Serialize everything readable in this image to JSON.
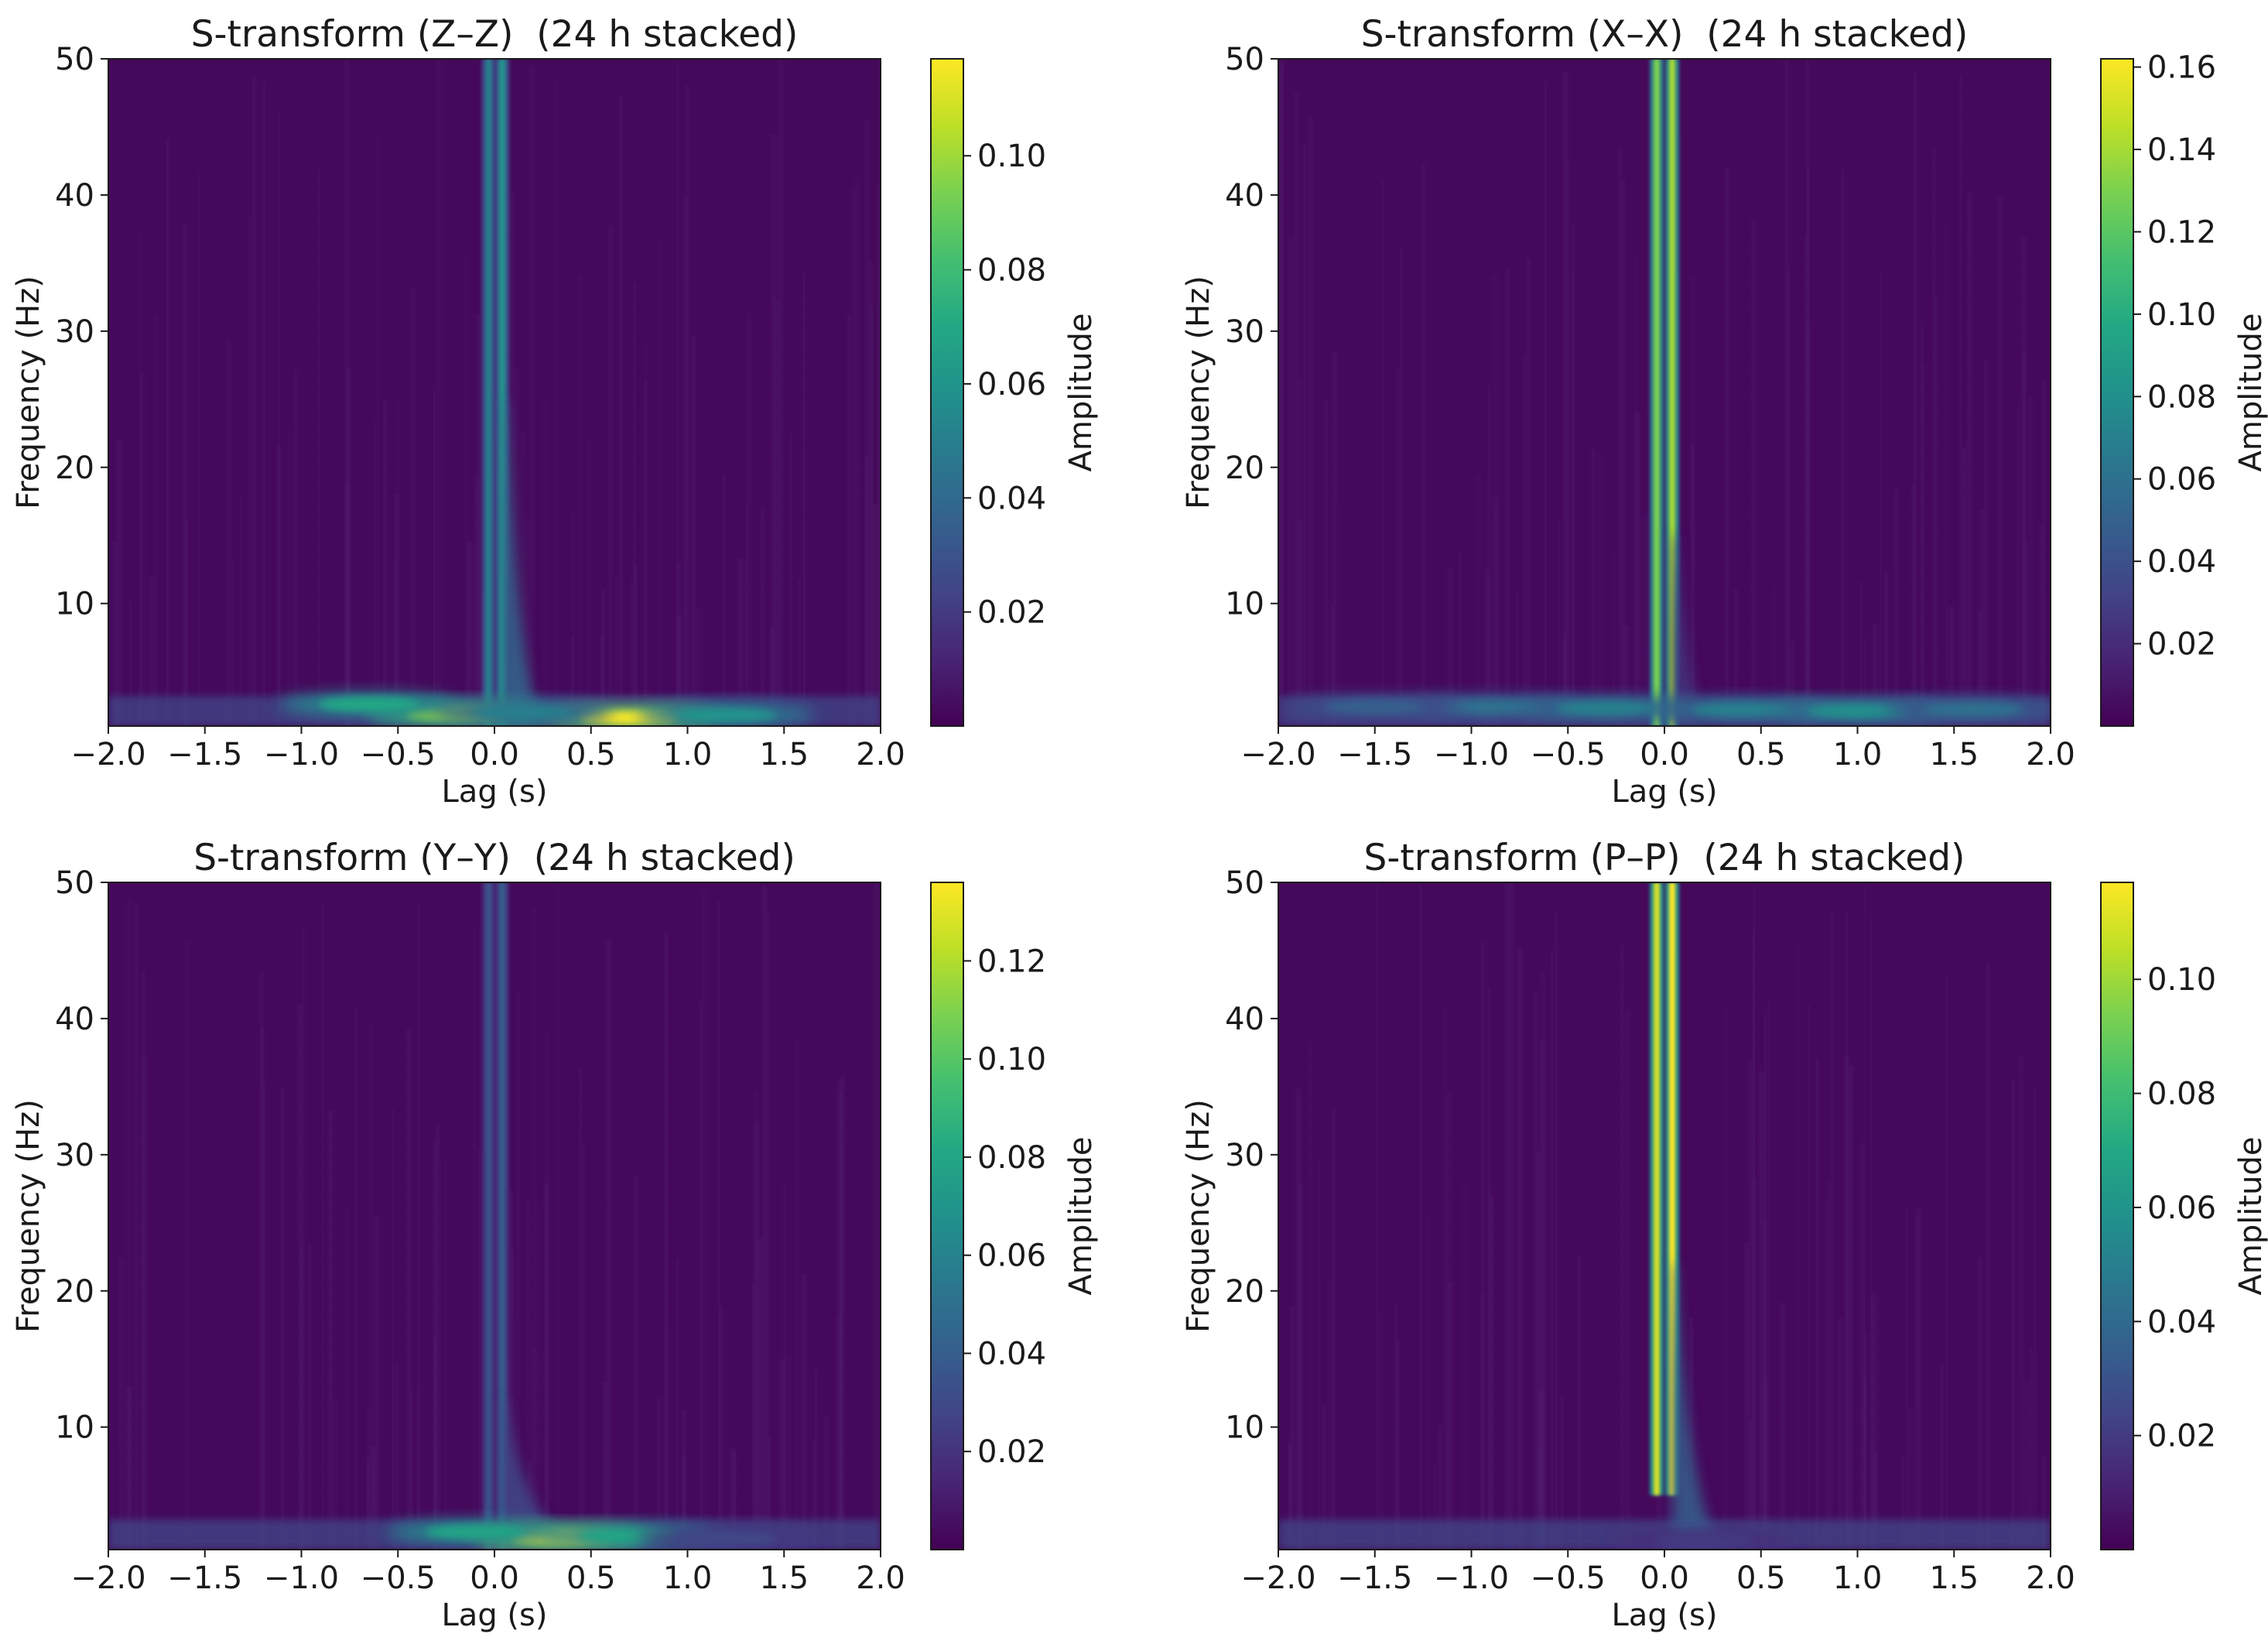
{
  "chart_data": [
    {
      "type": "heatmap",
      "title": "S-transform (Z–Z)  (24 h stacked)",
      "xlabel": "Lag (s)",
      "ylabel": "Frequency (Hz)",
      "xlim": [
        -2.0,
        2.0
      ],
      "ylim": [
        1,
        50
      ],
      "xticks": [
        -2.0,
        -1.5,
        -1.0,
        -0.5,
        0.0,
        0.5,
        1.0,
        1.5,
        2.0
      ],
      "xtick_labels": [
        "−2.0",
        "−1.5",
        "−1.0",
        "−0.5",
        "0.0",
        "0.5",
        "1.0",
        "1.5",
        "2.0"
      ],
      "yticks": [
        10,
        20,
        30,
        40,
        50
      ],
      "ytick_labels": [
        "10",
        "20",
        "30",
        "40",
        "50"
      ],
      "colorbar": {
        "label": "Amplitude",
        "colormap": "viridis",
        "range": [
          0.0,
          0.117
        ],
        "ticks": [
          0.02,
          0.04,
          0.06,
          0.08,
          0.1
        ],
        "tick_labels": [
          "0.02",
          "0.04",
          "0.06",
          "0.08",
          "0.10"
        ]
      },
      "features": [
        {
          "kind": "vertical-line",
          "lag": -0.03,
          "amplitude": 0.05,
          "fmin": 1,
          "fmax": 50
        },
        {
          "kind": "vertical-line",
          "lag": 0.04,
          "amplitude": 0.06,
          "fmin": 1,
          "fmax": 50
        },
        {
          "kind": "tail",
          "lag_from": 0.04,
          "lag_to": 0.25,
          "amplitude": 0.04,
          "fmin": 1,
          "fmax": 25
        },
        {
          "kind": "blob",
          "lag": -0.2,
          "freq": 1.9,
          "amplitude": 0.1
        },
        {
          "kind": "blob",
          "lag": -0.65,
          "freq": 2.6,
          "amplitude": 0.07
        },
        {
          "kind": "blob",
          "lag": 0.7,
          "freq": 1.6,
          "amplitude": 0.117
        },
        {
          "kind": "blob",
          "lag": 1.2,
          "freq": 1.8,
          "amplitude": 0.06
        },
        {
          "kind": "blob",
          "lag": 0.15,
          "freq": 2.0,
          "amplitude": 0.05
        }
      ]
    },
    {
      "type": "heatmap",
      "title": "S-transform (X–X)  (24 h stacked)",
      "xlabel": "Lag (s)",
      "ylabel": "Frequency (Hz)",
      "xlim": [
        -2.0,
        2.0
      ],
      "ylim": [
        1,
        50
      ],
      "xticks": [
        -2.0,
        -1.5,
        -1.0,
        -0.5,
        0.0,
        0.5,
        1.0,
        1.5,
        2.0
      ],
      "xtick_labels": [
        "−2.0",
        "−1.5",
        "−1.0",
        "−0.5",
        "0.0",
        "0.5",
        "1.0",
        "1.5",
        "2.0"
      ],
      "yticks": [
        10,
        20,
        30,
        40,
        50
      ],
      "ytick_labels": [
        "10",
        "20",
        "30",
        "40",
        "50"
      ],
      "colorbar": {
        "label": "Amplitude",
        "colormap": "viridis",
        "range": [
          0.0,
          0.162
        ],
        "ticks": [
          0.02,
          0.04,
          0.06,
          0.08,
          0.1,
          0.12,
          0.14,
          0.16
        ],
        "tick_labels": [
          "0.02",
          "0.04",
          "0.06",
          "0.08",
          "0.10",
          "0.12",
          "0.14",
          "0.16"
        ]
      },
      "features": [
        {
          "kind": "vertical-line",
          "lag": -0.04,
          "amplitude": 0.13,
          "fmin": 1,
          "fmax": 50
        },
        {
          "kind": "vertical-line",
          "lag": 0.04,
          "amplitude": 0.14,
          "fmin": 1,
          "fmax": 50
        },
        {
          "kind": "tail",
          "lag_from": 0.04,
          "lag_to": 0.2,
          "amplitude": 0.025,
          "fmin": 1,
          "fmax": 15
        },
        {
          "kind": "blob",
          "lag": -0.9,
          "freq": 2.4,
          "amplitude": 0.06
        },
        {
          "kind": "blob",
          "lag": -0.3,
          "freq": 2.3,
          "amplitude": 0.07
        },
        {
          "kind": "blob",
          "lag": 0.4,
          "freq": 2.2,
          "amplitude": 0.07
        },
        {
          "kind": "blob",
          "lag": 1.0,
          "freq": 2.1,
          "amplitude": 0.08
        },
        {
          "kind": "blob",
          "lag": 1.6,
          "freq": 2.2,
          "amplitude": 0.06
        },
        {
          "kind": "blob",
          "lag": -1.5,
          "freq": 2.4,
          "amplitude": 0.05
        }
      ]
    },
    {
      "type": "heatmap",
      "title": "S-transform (Y–Y)  (24 h stacked)",
      "xlabel": "Lag (s)",
      "ylabel": "Frequency (Hz)",
      "xlim": [
        -2.0,
        2.0
      ],
      "ylim": [
        1,
        50
      ],
      "xticks": [
        -2.0,
        -1.5,
        -1.0,
        -0.5,
        0.0,
        0.5,
        1.0,
        1.5,
        2.0
      ],
      "xtick_labels": [
        "−2.0",
        "−1.5",
        "−1.0",
        "−0.5",
        "0.0",
        "0.5",
        "1.0",
        "1.5",
        "2.0"
      ],
      "yticks": [
        10,
        20,
        30,
        40,
        50
      ],
      "ytick_labels": [
        "10",
        "20",
        "30",
        "40",
        "50"
      ],
      "colorbar": {
        "label": "Amplitude",
        "colormap": "viridis",
        "range": [
          0.0,
          0.136
        ],
        "ticks": [
          0.02,
          0.04,
          0.06,
          0.08,
          0.1,
          0.12
        ],
        "tick_labels": [
          "0.02",
          "0.04",
          "0.06",
          "0.08",
          "0.10",
          "0.12"
        ]
      },
      "features": [
        {
          "kind": "vertical-line",
          "lag": -0.03,
          "amplitude": 0.035,
          "fmin": 1,
          "fmax": 50
        },
        {
          "kind": "vertical-line",
          "lag": 0.04,
          "amplitude": 0.04,
          "fmin": 1,
          "fmax": 50
        },
        {
          "kind": "tail",
          "lag_from": 0.04,
          "lag_to": 0.4,
          "amplitude": 0.03,
          "fmin": 1,
          "fmax": 12
        },
        {
          "kind": "blob",
          "lag": 0.35,
          "freq": 1.9,
          "amplitude": 0.136
        },
        {
          "kind": "blob",
          "lag": -0.1,
          "freq": 2.3,
          "amplitude": 0.08
        },
        {
          "kind": "blob",
          "lag": 0.7,
          "freq": 2.0,
          "amplitude": 0.08
        },
        {
          "kind": "blob",
          "lag": 1.2,
          "freq": 1.8,
          "amplitude": 0.03
        }
      ]
    },
    {
      "type": "heatmap",
      "title": "S-transform (P–P)  (24 h stacked)",
      "xlabel": "Lag (s)",
      "ylabel": "Frequency (Hz)",
      "xlim": [
        -2.0,
        2.0
      ],
      "ylim": [
        1,
        50
      ],
      "xticks": [
        -2.0,
        -1.5,
        -1.0,
        -0.5,
        0.0,
        0.5,
        1.0,
        1.5,
        2.0
      ],
      "xtick_labels": [
        "−2.0",
        "−1.5",
        "−1.0",
        "−0.5",
        "0.0",
        "0.5",
        "1.0",
        "1.5",
        "2.0"
      ],
      "yticks": [
        10,
        20,
        30,
        40,
        50
      ],
      "ytick_labels": [
        "10",
        "20",
        "30",
        "40",
        "50"
      ],
      "colorbar": {
        "label": "Amplitude",
        "colormap": "viridis",
        "range": [
          0.0,
          0.117
        ],
        "ticks": [
          0.02,
          0.04,
          0.06,
          0.08,
          0.1
        ],
        "tick_labels": [
          "0.02",
          "0.04",
          "0.06",
          "0.08",
          "0.10"
        ]
      },
      "features": [
        {
          "kind": "vertical-line",
          "lag": -0.04,
          "amplitude": 0.11,
          "fmin": 5,
          "fmax": 50
        },
        {
          "kind": "vertical-line",
          "lag": 0.04,
          "amplitude": 0.117,
          "fmin": 5,
          "fmax": 50
        },
        {
          "kind": "tail",
          "lag_from": 0.04,
          "lag_to": 0.3,
          "amplitude": 0.035,
          "fmin": 1,
          "fmax": 22
        },
        {
          "kind": "blob",
          "lag": 0.2,
          "freq": 1.6,
          "amplitude": 0.02
        }
      ]
    }
  ]
}
